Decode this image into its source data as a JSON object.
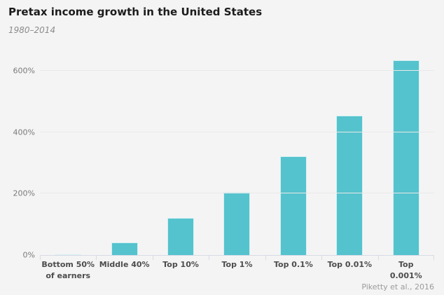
{
  "chart_data": {
    "type": "bar",
    "title": "Pretax income growth in the United States",
    "subtitle": "1980–2014",
    "source": "Piketty et al., 2016",
    "categories": [
      "Bottom 50%\nof earners",
      "Middle 40%",
      "Top 10%",
      "Top 1%",
      "Top 0.1%",
      "Top 0.01%",
      "Top\n0.001%"
    ],
    "values": [
      1,
      42,
      121,
      205,
      321,
      454,
      636
    ],
    "yticks": [
      0,
      200,
      400,
      600
    ],
    "ytick_labels": [
      "0%",
      "200%",
      "400%",
      "600%"
    ],
    "ylim": [
      0,
      660
    ],
    "xlabel": "",
    "ylabel": "",
    "grid": "horizontal",
    "legend": "none",
    "colors": {
      "bar": "#55c3cd",
      "background": "#f4f4f4",
      "gridline": "#e9e9e9",
      "axis": "#d8dbe6",
      "title_text": "#1c1c1c",
      "subtitle_text": "#8c8c8c",
      "category_text": "#4c4c4c",
      "ytick_text": "#7a7a7a",
      "source_text": "#9b9b9b"
    }
  }
}
